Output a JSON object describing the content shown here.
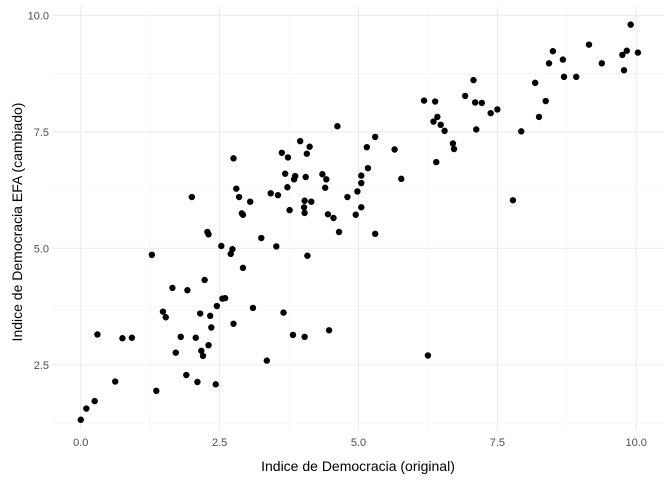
{
  "chart_data": {
    "type": "scatter",
    "title": "",
    "xlabel": "Indice de Democracia (original)",
    "ylabel": "Indice de Democracia EFA (cambiado)",
    "xlim": [
      -0.5,
      10.5
    ],
    "ylim": [
      1.1,
      10.2
    ],
    "x_ticks": [
      0.0,
      2.5,
      5.0,
      7.5,
      10.0
    ],
    "x_tick_labels": [
      "0.0",
      "2.5",
      "5.0",
      "7.5",
      "10.0"
    ],
    "y_ticks": [
      2.5,
      5.0,
      7.5,
      10.0
    ],
    "y_tick_labels": [
      "2.5",
      "5.0",
      "7.5",
      "10.0"
    ],
    "grid": true,
    "legend": "none",
    "point_color": "#000000",
    "points": [
      [
        0.0,
        1.32
      ],
      [
        0.1,
        1.56
      ],
      [
        0.25,
        1.72
      ],
      [
        0.3,
        3.15
      ],
      [
        0.62,
        2.14
      ],
      [
        0.75,
        3.07
      ],
      [
        0.92,
        3.08
      ],
      [
        1.28,
        4.86
      ],
      [
        1.36,
        1.94
      ],
      [
        1.48,
        3.64
      ],
      [
        1.53,
        3.52
      ],
      [
        1.65,
        4.15
      ],
      [
        1.71,
        2.76
      ],
      [
        1.8,
        3.1
      ],
      [
        1.9,
        2.28
      ],
      [
        1.92,
        4.1
      ],
      [
        2.0,
        6.1
      ],
      [
        2.07,
        3.08
      ],
      [
        2.1,
        2.13
      ],
      [
        2.15,
        3.6
      ],
      [
        2.17,
        2.8
      ],
      [
        2.2,
        2.69
      ],
      [
        2.23,
        4.32
      ],
      [
        2.28,
        5.35
      ],
      [
        2.3,
        2.92
      ],
      [
        2.3,
        5.3
      ],
      [
        2.33,
        3.55
      ],
      [
        2.35,
        3.3
      ],
      [
        2.43,
        2.08
      ],
      [
        2.45,
        3.76
      ],
      [
        2.53,
        5.05
      ],
      [
        2.55,
        3.92
      ],
      [
        2.6,
        3.93
      ],
      [
        2.7,
        4.88
      ],
      [
        2.73,
        4.98
      ],
      [
        2.75,
        6.93
      ],
      [
        2.75,
        3.38
      ],
      [
        2.8,
        6.28
      ],
      [
        2.85,
        6.1
      ],
      [
        2.9,
        5.75
      ],
      [
        2.92,
        5.72
      ],
      [
        2.92,
        4.58
      ],
      [
        3.05,
        6.0
      ],
      [
        3.1,
        3.72
      ],
      [
        3.25,
        5.22
      ],
      [
        3.35,
        2.59
      ],
      [
        3.42,
        6.18
      ],
      [
        3.52,
        5.04
      ],
      [
        3.55,
        6.14
      ],
      [
        3.62,
        7.05
      ],
      [
        3.65,
        3.62
      ],
      [
        3.68,
        6.6
      ],
      [
        3.72,
        6.31
      ],
      [
        3.73,
        6.95
      ],
      [
        3.76,
        5.82
      ],
      [
        3.82,
        3.14
      ],
      [
        3.84,
        6.48
      ],
      [
        3.86,
        6.55
      ],
      [
        3.95,
        7.3
      ],
      [
        4.02,
        5.88
      ],
      [
        4.03,
        6.02
      ],
      [
        4.03,
        5.76
      ],
      [
        4.03,
        3.1
      ],
      [
        4.05,
        6.53
      ],
      [
        4.07,
        7.03
      ],
      [
        4.08,
        4.84
      ],
      [
        4.12,
        7.18
      ],
      [
        4.15,
        6.0
      ],
      [
        4.35,
        6.59
      ],
      [
        4.4,
        6.3
      ],
      [
        4.42,
        6.48
      ],
      [
        4.45,
        5.73
      ],
      [
        4.47,
        3.24
      ],
      [
        4.55,
        5.65
      ],
      [
        4.62,
        7.62
      ],
      [
        4.65,
        5.35
      ],
      [
        4.8,
        6.1
      ],
      [
        4.95,
        5.72
      ],
      [
        4.98,
        6.22
      ],
      [
        5.05,
        6.4
      ],
      [
        5.05,
        6.56
      ],
      [
        5.05,
        5.88
      ],
      [
        5.17,
        6.72
      ],
      [
        5.15,
        7.17
      ],
      [
        5.3,
        7.39
      ],
      [
        5.3,
        5.31
      ],
      [
        5.65,
        7.12
      ],
      [
        5.77,
        6.49
      ],
      [
        6.18,
        8.17
      ],
      [
        6.25,
        2.7
      ],
      [
        6.35,
        7.72
      ],
      [
        6.38,
        8.15
      ],
      [
        6.4,
        6.85
      ],
      [
        6.42,
        7.82
      ],
      [
        6.48,
        7.65
      ],
      [
        6.55,
        7.52
      ],
      [
        6.7,
        7.25
      ],
      [
        6.72,
        7.13
      ],
      [
        6.92,
        8.27
      ],
      [
        7.07,
        8.61
      ],
      [
        7.1,
        8.13
      ],
      [
        7.12,
        7.55
      ],
      [
        7.22,
        8.12
      ],
      [
        7.38,
        7.9
      ],
      [
        7.5,
        7.98
      ],
      [
        7.78,
        6.03
      ],
      [
        7.93,
        7.51
      ],
      [
        8.18,
        8.55
      ],
      [
        8.25,
        7.82
      ],
      [
        8.37,
        8.16
      ],
      [
        8.43,
        8.97
      ],
      [
        8.5,
        9.23
      ],
      [
        8.68,
        9.05
      ],
      [
        8.7,
        8.68
      ],
      [
        8.92,
        8.68
      ],
      [
        9.15,
        9.37
      ],
      [
        9.38,
        8.97
      ],
      [
        9.75,
        9.15
      ],
      [
        9.78,
        8.82
      ],
      [
        9.83,
        9.24
      ],
      [
        9.9,
        9.8
      ],
      [
        10.03,
        9.2
      ]
    ]
  }
}
